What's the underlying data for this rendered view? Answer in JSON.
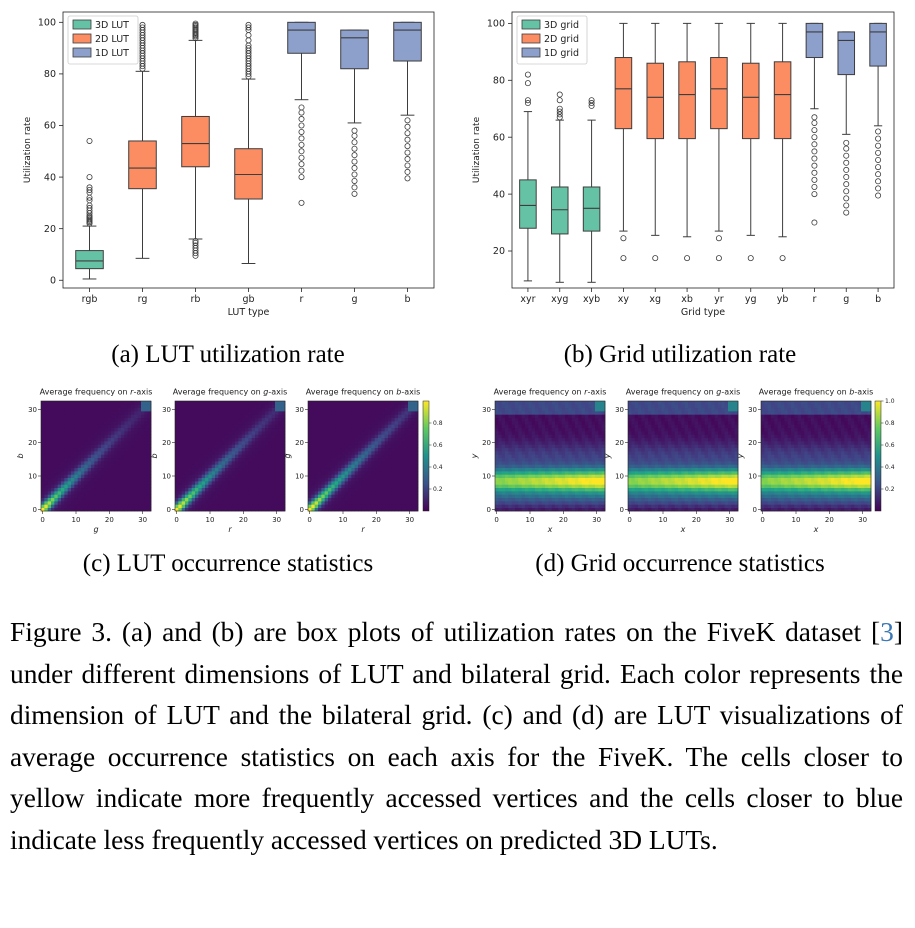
{
  "chart_data": [
    {
      "id": "a",
      "type": "box",
      "caption": "(a) LUT utilization rate",
      "xlabel": "LUT type",
      "ylabel": "Utilization rate",
      "ylim": [
        -3,
        104
      ],
      "yticks": [
        0,
        20,
        40,
        60,
        80,
        100
      ],
      "legend": {
        "position": "top-left",
        "entries": [
          {
            "label": "3D LUT",
            "color": "#66c2a5"
          },
          {
            "label": "2D LUT",
            "color": "#fc8d62"
          },
          {
            "label": "1D LUT",
            "color": "#8da0cb"
          }
        ]
      },
      "boxes": [
        {
          "label": "rgb",
          "group": 0,
          "lw": 0.5,
          "q1": 4.5,
          "med": 7.5,
          "q3": 11.5,
          "uw": 21,
          "out": [
            22,
            22.5,
            23,
            23.5,
            24,
            24.5,
            25,
            26,
            27,
            28,
            29,
            31,
            32,
            34,
            35,
            36,
            40,
            54
          ]
        },
        {
          "label": "rg",
          "group": 1,
          "lw": 8.5,
          "q1": 35.5,
          "med": 43.5,
          "q3": 54,
          "uw": 81,
          "out": [
            82,
            83,
            84,
            85,
            86,
            87,
            88,
            89,
            90,
            91,
            92,
            93,
            94,
            95,
            96,
            97,
            98,
            99
          ]
        },
        {
          "label": "rb",
          "group": 1,
          "lw": 16,
          "q1": 44,
          "med": 53,
          "q3": 63.5,
          "uw": 93,
          "out": [
            9.5,
            10.5,
            11.5,
            12.5,
            13.5,
            14.5,
            15.2,
            93.8,
            94.5,
            95,
            95.5,
            96,
            96.5,
            97,
            97.5,
            98,
            98.5,
            99,
            99.5
          ]
        },
        {
          "label": "gb",
          "group": 1,
          "lw": 6.5,
          "q1": 31.5,
          "med": 41,
          "q3": 51,
          "uw": 78,
          "out": [
            79,
            80,
            81,
            82,
            83,
            84,
            85,
            86,
            87,
            88,
            89,
            90,
            91,
            93,
            95,
            97,
            98,
            99
          ]
        },
        {
          "label": "r",
          "group": 2,
          "lw": 70,
          "q1": 88,
          "med": 97,
          "q3": 100,
          "uw": 100,
          "out": [
            30,
            40,
            42.5,
            45,
            47.5,
            50,
            52.5,
            55,
            57.5,
            60,
            62.5,
            65,
            67
          ]
        },
        {
          "label": "g",
          "group": 2,
          "lw": 61,
          "q1": 82,
          "med": 94,
          "q3": 97,
          "uw": 97,
          "out": [
            33.5,
            36,
            38.5,
            41,
            43.5,
            46,
            48.5,
            51,
            53.5,
            56,
            58
          ]
        },
        {
          "label": "b",
          "group": 2,
          "lw": 64,
          "q1": 85,
          "med": 97,
          "q3": 100,
          "uw": 100,
          "out": [
            39.5,
            42,
            44.5,
            47,
            49.5,
            52,
            54.5,
            57,
            59.5,
            62
          ]
        }
      ]
    },
    {
      "id": "b",
      "type": "box",
      "caption": "(b) Grid utilization rate",
      "xlabel": "Grid type",
      "ylabel": "Utilization rate",
      "ylim": [
        7,
        104
      ],
      "yticks": [
        20,
        40,
        60,
        80,
        100
      ],
      "legend": {
        "position": "top-left",
        "entries": [
          {
            "label": "3D grid",
            "color": "#66c2a5"
          },
          {
            "label": "2D grid",
            "color": "#fc8d62"
          },
          {
            "label": "1D grid",
            "color": "#8da0cb"
          }
        ]
      },
      "boxes": [
        {
          "label": "xyr",
          "group": 0,
          "lw": 9.5,
          "q1": 28,
          "med": 36,
          "q3": 45,
          "uw": 69,
          "out": [
            72,
            73,
            79,
            82
          ]
        },
        {
          "label": "xyg",
          "group": 0,
          "lw": 9,
          "q1": 26,
          "med": 34.5,
          "q3": 42.5,
          "uw": 66,
          "out": [
            67,
            68,
            69,
            70,
            73,
            75
          ]
        },
        {
          "label": "xyb",
          "group": 0,
          "lw": 9,
          "q1": 27,
          "med": 35,
          "q3": 42.5,
          "uw": 66,
          "out": [
            71,
            72,
            73
          ]
        },
        {
          "label": "xy",
          "group": 1,
          "lw": 27,
          "q1": 63,
          "med": 77,
          "q3": 88,
          "uw": 100,
          "out": [
            17.5,
            24.5
          ]
        },
        {
          "label": "xg",
          "group": 1,
          "lw": 25.5,
          "q1": 59.5,
          "med": 74,
          "q3": 86,
          "uw": 100,
          "out": [
            17.5
          ]
        },
        {
          "label": "xb",
          "group": 1,
          "lw": 25,
          "q1": 59.5,
          "med": 75,
          "q3": 86.5,
          "uw": 100,
          "out": [
            17.5
          ]
        },
        {
          "label": "yr",
          "group": 1,
          "lw": 27,
          "q1": 63,
          "med": 77,
          "q3": 88,
          "uw": 100,
          "out": [
            17.5,
            24.5
          ]
        },
        {
          "label": "yg",
          "group": 1,
          "lw": 25.5,
          "q1": 59.5,
          "med": 74,
          "q3": 86,
          "uw": 100,
          "out": [
            17.5
          ]
        },
        {
          "label": "yb",
          "group": 1,
          "lw": 25,
          "q1": 59.5,
          "med": 75,
          "q3": 86.5,
          "uw": 100,
          "out": [
            17.5
          ]
        },
        {
          "label": "r",
          "group": 2,
          "lw": 70,
          "q1": 88,
          "med": 97,
          "q3": 100,
          "uw": 100,
          "out": [
            30,
            40,
            42.5,
            45,
            47.5,
            50,
            52.5,
            55,
            57.5,
            60,
            62.5,
            65,
            67
          ]
        },
        {
          "label": "g",
          "group": 2,
          "lw": 61,
          "q1": 82,
          "med": 94,
          "q3": 97,
          "uw": 97,
          "out": [
            33.5,
            36,
            38.5,
            41,
            43.5,
            46,
            48.5,
            51,
            53.5,
            56,
            58
          ]
        },
        {
          "label": "b",
          "group": 2,
          "lw": 64,
          "q1": 85,
          "med": 97,
          "q3": 100,
          "uw": 100,
          "out": [
            39.5,
            42,
            44.5,
            47,
            49.5,
            52,
            54.5,
            57,
            59.5,
            62
          ]
        }
      ]
    },
    {
      "id": "c",
      "type": "heatmap",
      "caption": "(c) LUT occurrence statistics",
      "pattern": "diagonal",
      "colorbar_ticks": [
        "0.2",
        "0.4",
        "0.6",
        "0.8"
      ],
      "axis_ticks": [
        "0",
        "10",
        "20",
        "30"
      ],
      "panels": [
        {
          "title_pre": "Average frequency on ",
          "axis": "r",
          "title_post": "-axis",
          "xlabel": "g",
          "ylabel": "b"
        },
        {
          "title_pre": "Average frequency on ",
          "axis": "g",
          "title_post": "-axis",
          "xlabel": "r",
          "ylabel": "b"
        },
        {
          "title_pre": "Average frequency on ",
          "axis": "b",
          "title_post": "-axis",
          "xlabel": "r",
          "ylabel": "g"
        }
      ]
    },
    {
      "id": "d",
      "type": "heatmap",
      "caption": "(d) Grid occurrence statistics",
      "pattern": "band",
      "colorbar_ticks": [
        "0.2",
        "0.4",
        "0.6",
        "0.8",
        "1.0"
      ],
      "axis_ticks": [
        "0",
        "10",
        "20",
        "30"
      ],
      "panels": [
        {
          "title_pre": "Average frequency on ",
          "axis": "r",
          "title_post": "-axis",
          "xlabel": "x",
          "ylabel": "y"
        },
        {
          "title_pre": "Average frequency on ",
          "axis": "g",
          "title_post": "-axis",
          "xlabel": "x",
          "ylabel": "y"
        },
        {
          "title_pre": "Average frequency on ",
          "axis": "b",
          "title_post": "-axis",
          "xlabel": "x",
          "ylabel": "y"
        }
      ]
    }
  ],
  "caption": {
    "lead": "Figure 3. (a) and (b) are box plots of utilization rates on the FiveK dataset [",
    "cite": "3",
    "tail": "] under different dimensions of LUT and bilateral grid. Each color represents the dimension of LUT and the bilateral grid. (c) and (d) are LUT visualizations of average occurrence statistics on each axis for the FiveK. The cells closer to yellow indicate more frequently accessed vertices and the cells closer to blue indicate less frequently accessed vertices on predicted 3D LUTs."
  }
}
